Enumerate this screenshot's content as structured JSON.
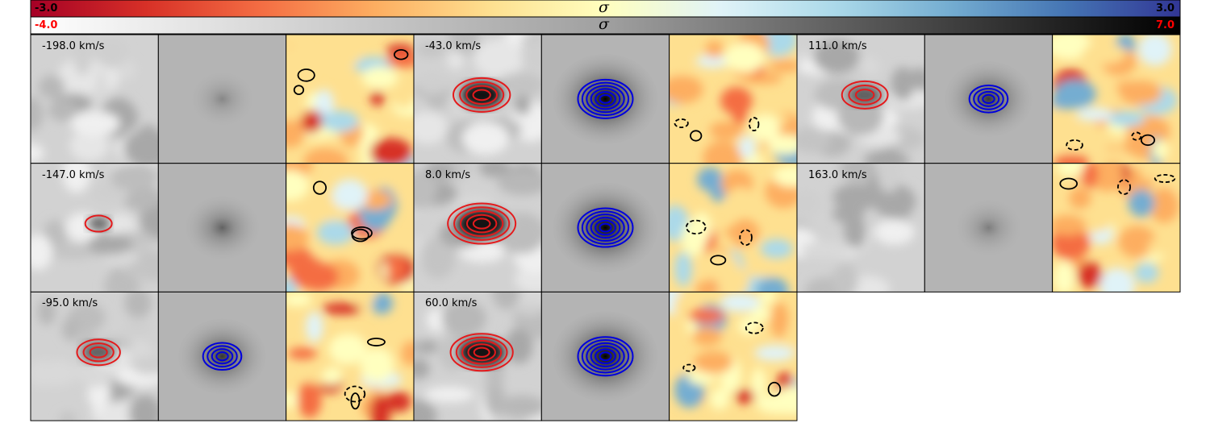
{
  "colorbars": {
    "residual": {
      "min_label": "-3.0",
      "max_label": "3.0",
      "label": "σ",
      "min_color": "#000000",
      "max_color": "#000000",
      "cmap": "RdYlBu"
    },
    "data": {
      "min_label": "-4.0",
      "max_label": "7.0",
      "label": "σ",
      "min_color": "#ff0000",
      "max_color": "#ff0000",
      "cmap": "Greys"
    }
  },
  "chart_data": {
    "type": "heatmap",
    "description_panels": [
      "data",
      "model",
      "residual"
    ],
    "contour_colors": {
      "data": "#e41a1c",
      "model": "#0000dd",
      "residual_pos": "#000000",
      "residual_neg": "#000000"
    },
    "channels": [
      {
        "velocity": "-198.0 km/s",
        "signal": 0.05,
        "model_peak": 0.25
      },
      {
        "velocity": "-147.0 km/s",
        "signal": 0.25,
        "model_peak": 0.45
      },
      {
        "velocity": "-95.0 km/s",
        "signal": 0.55,
        "model_peak": 0.7
      },
      {
        "velocity": "-43.0 km/s",
        "signal": 0.8,
        "model_peak": 1.0
      },
      {
        "velocity": "8.0 km/s",
        "signal": 1.0,
        "model_peak": 1.0
      },
      {
        "velocity": "60.0 km/s",
        "signal": 0.9,
        "model_peak": 1.0
      },
      {
        "velocity": "111.0 km/s",
        "signal": 0.6,
        "model_peak": 0.7
      },
      {
        "velocity": "163.0 km/s",
        "signal": 0.05,
        "model_peak": 0.3
      }
    ]
  }
}
